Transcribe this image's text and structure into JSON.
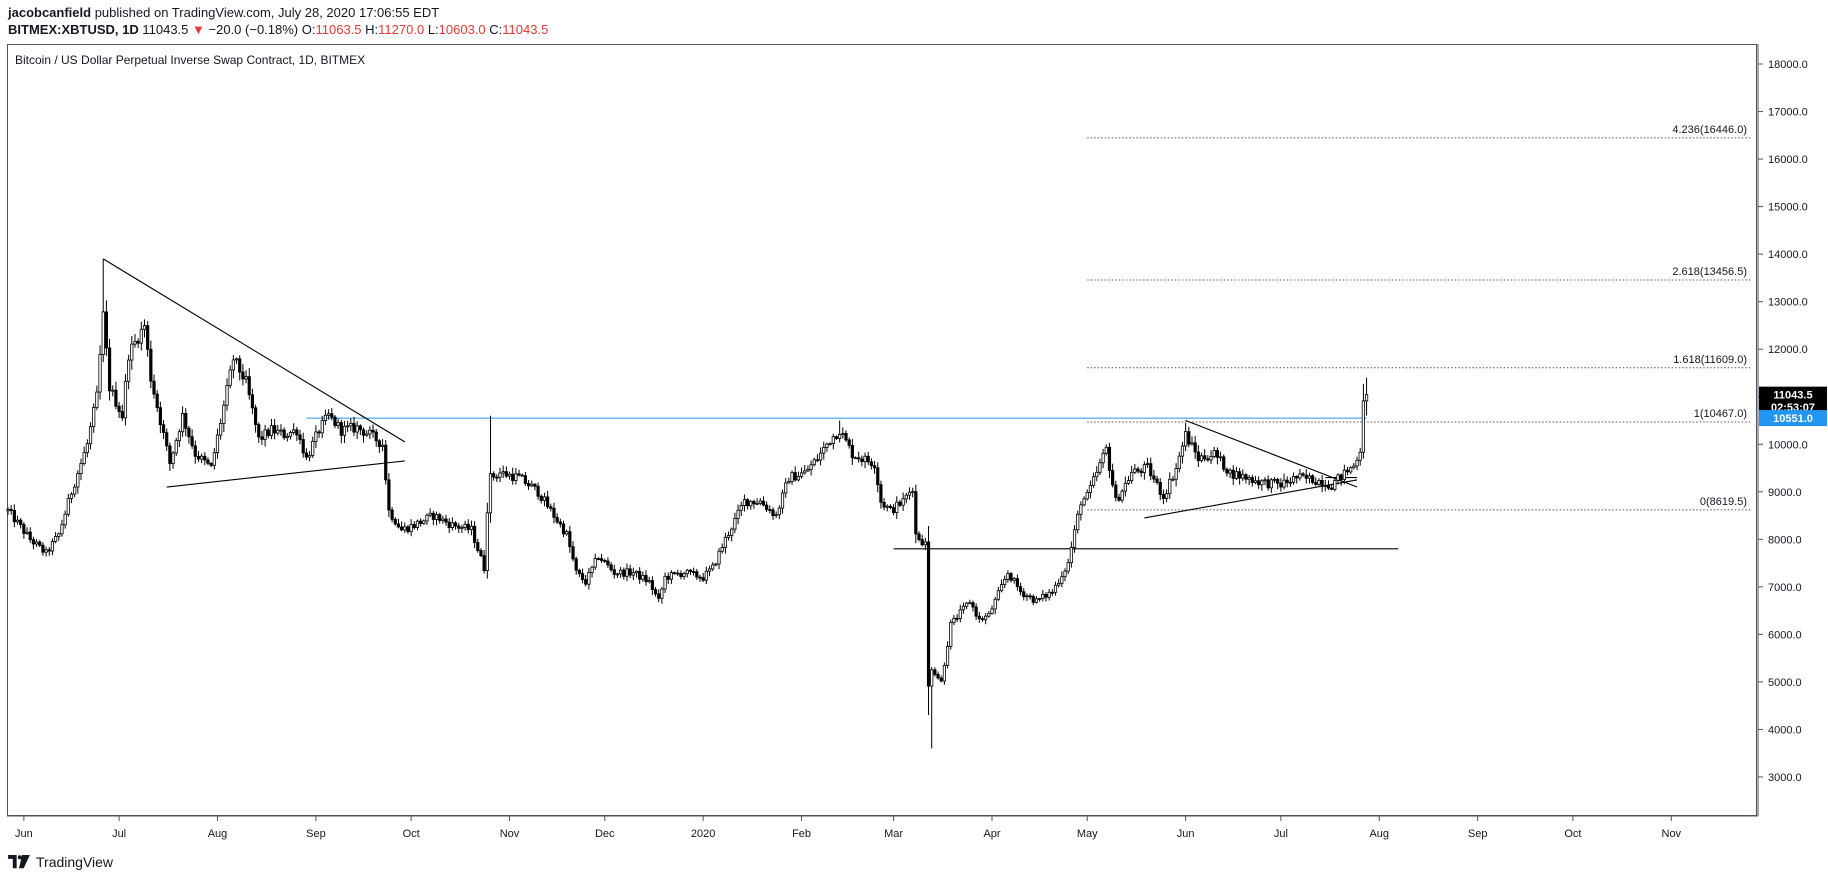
{
  "header": {
    "author": "jacobcanfield",
    "published_text": "published on TradingView.com, July 28, 2020 17:06:55 EDT",
    "symbol": "BITMEX:XBTUSD, 1D",
    "last": "11043.5",
    "change_arrow": "▼",
    "change": "−20.0 (−0.18%)",
    "open_label": "O:",
    "open": "11063.5",
    "high_label": "H:",
    "high": "11270.0",
    "low_label": "L:",
    "low": "10603.0",
    "close_label": "C:",
    "close": "11043.5"
  },
  "footer": {
    "brand": "TradingView",
    "logo_icon": "tradingview-logo-icon"
  },
  "colors": {
    "axis": "#50535e",
    "text": "#131722",
    "down": "#e53935",
    "horizontal_line": "#2196f3",
    "price_label_bg": "#000000",
    "marker_label_bg": "#2196f3",
    "candles": "#000000"
  },
  "chart_data": {
    "type": "candlestick",
    "title": "Bitcoin / US Dollar Perpetual Inverse Swap Contract, 1D, BITMEX",
    "ylim": [
      2200,
      18400
    ],
    "yticks": [
      3000,
      4000,
      5000,
      6000,
      7000,
      8000,
      9000,
      10000,
      11000,
      12000,
      13000,
      14000,
      15000,
      16000,
      17000,
      18000
    ],
    "ytick_labels": [
      "3000.0",
      "4000.0",
      "5000.0",
      "6000.0",
      "7000.0",
      "8000.0",
      "9000.0",
      "10000.0",
      "11000.0",
      "12000.0",
      "13000.0",
      "14000.0",
      "15000.0",
      "16000.0",
      "17000.0",
      "18000.0"
    ],
    "x_start": "2019-05-27",
    "x_end": "2020-11-28",
    "xticks": [
      {
        "date": "2019-06-01",
        "label": "Jun"
      },
      {
        "date": "2019-07-01",
        "label": "Jul"
      },
      {
        "date": "2019-08-01",
        "label": "Aug"
      },
      {
        "date": "2019-09-01",
        "label": "Sep"
      },
      {
        "date": "2019-10-01",
        "label": "Oct"
      },
      {
        "date": "2019-11-01",
        "label": "Nov"
      },
      {
        "date": "2019-12-01",
        "label": "Dec"
      },
      {
        "date": "2020-01-01",
        "label": "2020"
      },
      {
        "date": "2020-02-01",
        "label": "Feb"
      },
      {
        "date": "2020-03-01",
        "label": "Mar"
      },
      {
        "date": "2020-04-01",
        "label": "Apr"
      },
      {
        "date": "2020-05-01",
        "label": "May"
      },
      {
        "date": "2020-06-01",
        "label": "Jun"
      },
      {
        "date": "2020-07-01",
        "label": "Jul"
      },
      {
        "date": "2020-08-01",
        "label": "Aug"
      },
      {
        "date": "2020-09-01",
        "label": "Sep"
      },
      {
        "date": "2020-10-01",
        "label": "Oct"
      },
      {
        "date": "2020-11-01",
        "label": "Nov"
      }
    ],
    "close_path": [
      [
        "2019-05-27",
        8600
      ],
      [
        "2019-06-03",
        8000
      ],
      [
        "2019-06-08",
        7700
      ],
      [
        "2019-06-12",
        8100
      ],
      [
        "2019-06-16",
        9000
      ],
      [
        "2019-06-21",
        10000
      ],
      [
        "2019-06-24",
        11000
      ],
      [
        "2019-06-26",
        12700
      ],
      [
        "2019-06-28",
        11200
      ],
      [
        "2019-07-02",
        10600
      ],
      [
        "2019-07-04",
        11900
      ],
      [
        "2019-07-09",
        12500
      ],
      [
        "2019-07-11",
        11400
      ],
      [
        "2019-07-14",
        10500
      ],
      [
        "2019-07-17",
        9600
      ],
      [
        "2019-07-21",
        10600
      ],
      [
        "2019-07-25",
        9800
      ],
      [
        "2019-07-30",
        9500
      ],
      [
        "2019-08-03",
        10800
      ],
      [
        "2019-08-06",
        11800
      ],
      [
        "2019-08-10",
        11300
      ],
      [
        "2019-08-14",
        10100
      ],
      [
        "2019-08-18",
        10300
      ],
      [
        "2019-08-22",
        10200
      ],
      [
        "2019-08-26",
        10300
      ],
      [
        "2019-08-29",
        9700
      ],
      [
        "2019-09-02",
        10300
      ],
      [
        "2019-09-05",
        10600
      ],
      [
        "2019-09-09",
        10300
      ],
      [
        "2019-09-14",
        10350
      ],
      [
        "2019-09-18",
        10200
      ],
      [
        "2019-09-22",
        10000
      ],
      [
        "2019-09-24",
        8600
      ],
      [
        "2019-09-28",
        8200
      ],
      [
        "2019-10-02",
        8300
      ],
      [
        "2019-10-08",
        8500
      ],
      [
        "2019-10-14",
        8300
      ],
      [
        "2019-10-20",
        8200
      ],
      [
        "2019-10-24",
        7400
      ],
      [
        "2019-10-25",
        8650
      ],
      [
        "2019-10-26",
        9300
      ],
      [
        "2019-10-29",
        9400
      ],
      [
        "2019-11-04",
        9300
      ],
      [
        "2019-11-10",
        9000
      ],
      [
        "2019-11-15",
        8500
      ],
      [
        "2019-11-19",
        8100
      ],
      [
        "2019-11-22",
        7300
      ],
      [
        "2019-11-25",
        7100
      ],
      [
        "2019-11-29",
        7650
      ],
      [
        "2019-12-04",
        7300
      ],
      [
        "2019-12-10",
        7300
      ],
      [
        "2019-12-15",
        7100
      ],
      [
        "2019-12-18",
        6700
      ],
      [
        "2019-12-20",
        7200
      ],
      [
        "2019-12-26",
        7300
      ],
      [
        "2020-01-01",
        7200
      ],
      [
        "2020-01-04",
        7400
      ],
      [
        "2020-01-08",
        8000
      ],
      [
        "2020-01-14",
        8800
      ],
      [
        "2020-01-19",
        8800
      ],
      [
        "2020-01-24",
        8500
      ],
      [
        "2020-01-28",
        9300
      ],
      [
        "2020-02-02",
        9400
      ],
      [
        "2020-02-06",
        9700
      ],
      [
        "2020-02-10",
        10100
      ],
      [
        "2020-02-13",
        10300
      ],
      [
        "2020-02-17",
        9800
      ],
      [
        "2020-02-20",
        9700
      ],
      [
        "2020-02-24",
        9600
      ],
      [
        "2020-02-26",
        8800
      ],
      [
        "2020-02-29",
        8600
      ],
      [
        "2020-03-04",
        8800
      ],
      [
        "2020-03-07",
        9100
      ],
      [
        "2020-03-08",
        8100
      ],
      [
        "2020-03-11",
        7900
      ],
      [
        "2020-03-12",
        4900
      ],
      [
        "2020-03-13",
        5300
      ],
      [
        "2020-03-16",
        5000
      ],
      [
        "2020-03-19",
        6200
      ],
      [
        "2020-03-25",
        6700
      ],
      [
        "2020-03-28",
        6300
      ],
      [
        "2020-03-31",
        6400
      ],
      [
        "2020-04-06",
        7300
      ],
      [
        "2020-04-10",
        6900
      ],
      [
        "2020-04-15",
        6700
      ],
      [
        "2020-04-20",
        6900
      ],
      [
        "2020-04-25",
        7500
      ],
      [
        "2020-04-29",
        8800
      ],
      [
        "2020-05-01",
        8900
      ],
      [
        "2020-05-07",
        9900
      ],
      [
        "2020-05-10",
        8800
      ],
      [
        "2020-05-15",
        9400
      ],
      [
        "2020-05-20",
        9500
      ],
      [
        "2020-05-25",
        8900
      ],
      [
        "2020-05-29",
        9500
      ],
      [
        "2020-06-01",
        10200
      ],
      [
        "2020-06-05",
        9700
      ],
      [
        "2020-06-10",
        9800
      ],
      [
        "2020-06-15",
        9400
      ],
      [
        "2020-06-20",
        9300
      ],
      [
        "2020-06-25",
        9200
      ],
      [
        "2020-07-01",
        9150
      ],
      [
        "2020-07-06",
        9300
      ],
      [
        "2020-07-12",
        9250
      ],
      [
        "2020-07-17",
        9150
      ],
      [
        "2020-07-21",
        9380
      ],
      [
        "2020-07-24",
        9550
      ],
      [
        "2020-07-26",
        9900
      ],
      [
        "2020-07-27",
        11000
      ],
      [
        "2020-07-28",
        11043.5
      ]
    ],
    "annotations": {
      "fib_levels": [
        {
          "label": "4.236(16446.0)",
          "value": 16446.0
        },
        {
          "label": "2.618(13456.5)",
          "value": 13456.5
        },
        {
          "label": "1.618(11609.0)",
          "value": 11609.0
        },
        {
          "label": "1(10467.0)",
          "value": 10467.0
        },
        {
          "label": "0(8619.5)",
          "value": 8619.5
        }
      ],
      "fib_start_date": "2020-05-01",
      "horizontal_lines": [
        {
          "value": 10551,
          "from": "2019-08-29",
          "to": "2020-07-28",
          "style": "blue"
        },
        {
          "value": 7800,
          "from": "2020-03-01",
          "to": "2020-08-07",
          "style": "black"
        }
      ],
      "trendlines": [
        {
          "from": [
            "2019-06-26",
            13900
          ],
          "to": [
            "2019-09-29",
            10050
          ]
        },
        {
          "from": [
            "2019-07-16",
            9100
          ],
          "to": [
            "2019-09-29",
            9650
          ]
        },
        {
          "from": [
            "2020-06-01",
            10500
          ],
          "to": [
            "2020-07-25",
            9100
          ]
        },
        {
          "from": [
            "2020-05-19",
            8450
          ],
          "to": [
            "2020-07-25",
            9250
          ]
        },
        {
          "from": [
            "2020-07-15",
            9300
          ],
          "to": [
            "2020-07-25",
            9300
          ]
        }
      ],
      "price_labels": [
        {
          "value": 11043.5,
          "text": "11043.5",
          "style": "dark"
        },
        {
          "value": 10780,
          "text": "02:53:07",
          "style": "dark"
        },
        {
          "value": 10551.0,
          "text": "10551.0",
          "style": "blue"
        }
      ]
    }
  }
}
